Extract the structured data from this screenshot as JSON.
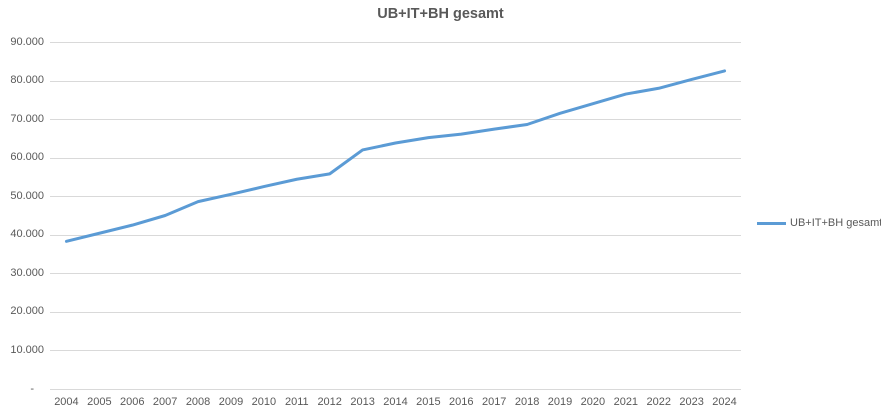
{
  "chart_data": {
    "type": "line",
    "title": "UB+IT+BH gesamt",
    "categories": [
      "2004",
      "2005",
      "2006",
      "2007",
      "2008",
      "2009",
      "2010",
      "2011",
      "2012",
      "2013",
      "2014",
      "2015",
      "2016",
      "2017",
      "2018",
      "2019",
      "2020",
      "2021",
      "2022",
      "2023",
      "2024"
    ],
    "series": [
      {
        "name": "UB+IT+BH gesamt",
        "color": "#5B9BD5",
        "values": [
          38300,
          40400,
          42500,
          45000,
          48600,
          50500,
          52500,
          54400,
          55800,
          62000,
          63800,
          65200,
          66100,
          67400,
          68600,
          71500,
          74000,
          76500,
          78000,
          80300,
          82500
        ]
      }
    ],
    "xlabel": "",
    "ylabel": "",
    "ylim": [
      0,
      90000
    ],
    "ytick_step": 10000,
    "ytick_labels": [
      "-",
      "10.000",
      "20.000",
      "30.000",
      "40.000",
      "50.000",
      "60.000",
      "70.000",
      "80.000",
      "90.000"
    ],
    "grid": true,
    "legend_position": "right"
  },
  "colors": {
    "series_blue": "#5B9BD5",
    "gridline": "#D9D9D9",
    "text": "#595959",
    "background": "#FFFFFF"
  }
}
